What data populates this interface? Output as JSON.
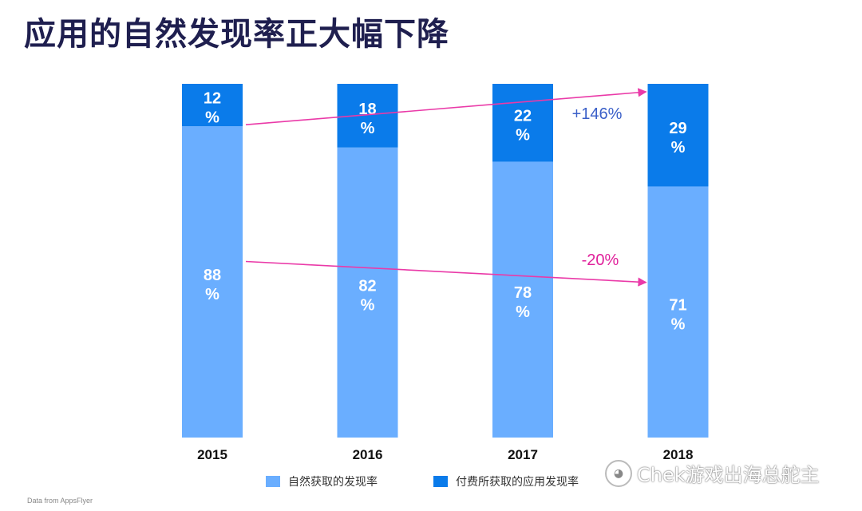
{
  "page": {
    "title": "应用的自然发现率正大幅下降",
    "source": "Data from AppsFlyer",
    "watermark": "Chek游戏出海总舵主"
  },
  "chart_data": {
    "type": "bar",
    "stacked": true,
    "title": "应用的自然发现率正大幅下降",
    "categories": [
      "2015",
      "2016",
      "2017",
      "2018"
    ],
    "series": [
      {
        "name": "自然获取的发现率",
        "values": [
          88,
          82,
          78,
          71
        ],
        "labels": [
          "88\n%",
          "82\n%",
          "78\n%",
          "71\n%"
        ],
        "color": "#6aaeff"
      },
      {
        "name": "付费所获取的应用发现率",
        "values": [
          12,
          18,
          22,
          29
        ],
        "labels": [
          "12\n%",
          "18\n%",
          "22\n%",
          "29\n%"
        ],
        "color": "#0a7bea"
      }
    ],
    "ylim": [
      0,
      100
    ],
    "legend_position": "bottom",
    "annotations": [
      {
        "text": "+146%",
        "color": "#3a5fc8",
        "from": "2015",
        "to": "2018",
        "series": "付费所获取的应用发现率"
      },
      {
        "text": "-20%",
        "color": "#e0209b",
        "from": "2015",
        "to": "2018",
        "series": "自然获取的发现率"
      }
    ],
    "arrow_color": "#ea3aa8"
  }
}
